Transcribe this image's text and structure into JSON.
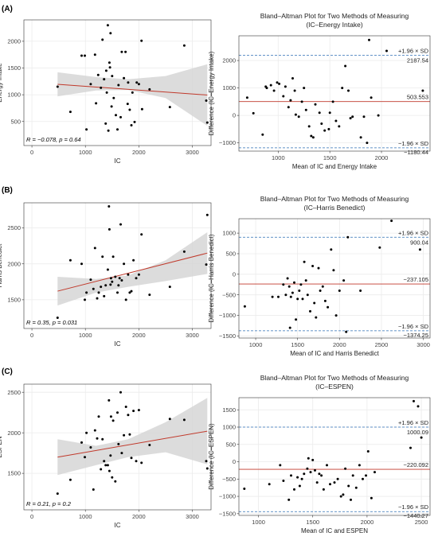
{
  "figure": {
    "colors": {
      "point": "#000000",
      "regression_line": "#c0392b",
      "confidence_band": "#d3d3d3",
      "mean_line": "#c0392b",
      "limit_line": "#2e6fb5",
      "grid": "#ebebeb",
      "panel_border": "#333333"
    }
  },
  "chart_data": [
    {
      "panel_label": "(A)",
      "type": "scatter",
      "title": "",
      "xlabel": "IC",
      "ylabel": "Energy Intake",
      "xlim": [
        -150,
        3350
      ],
      "ylim": [
        50,
        2400
      ],
      "xticks": [
        0,
        1000,
        2000,
        3000
      ],
      "yticks": [
        500,
        1000,
        1500,
        2000
      ],
      "grid": true,
      "points": [
        [
          480,
          1150
        ],
        [
          720,
          680
        ],
        [
          930,
          1730
        ],
        [
          990,
          1730
        ],
        [
          1020,
          350
        ],
        [
          1100,
          1200
        ],
        [
          1180,
          1750
        ],
        [
          1200,
          840
        ],
        [
          1240,
          1370
        ],
        [
          1290,
          1130
        ],
        [
          1320,
          2030
        ],
        [
          1350,
          1290
        ],
        [
          1380,
          460
        ],
        [
          1390,
          1450
        ],
        [
          1400,
          1040
        ],
        [
          1420,
          2300
        ],
        [
          1430,
          330
        ],
        [
          1450,
          1600
        ],
        [
          1460,
          1510
        ],
        [
          1470,
          2150
        ],
        [
          1490,
          780
        ],
        [
          1500,
          1350
        ],
        [
          1530,
          940
        ],
        [
          1570,
          620
        ],
        [
          1600,
          350
        ],
        [
          1620,
          1180
        ],
        [
          1660,
          580
        ],
        [
          1680,
          1800
        ],
        [
          1720,
          1310
        ],
        [
          1750,
          1800
        ],
        [
          1790,
          830
        ],
        [
          1800,
          1230
        ],
        [
          1830,
          720
        ],
        [
          1860,
          430
        ],
        [
          1880,
          1040
        ],
        [
          1920,
          490
        ],
        [
          1960,
          1230
        ],
        [
          2000,
          1200
        ],
        [
          2050,
          2010
        ],
        [
          2060,
          730
        ],
        [
          2200,
          1100
        ],
        [
          2580,
          770
        ],
        [
          2850,
          1920
        ],
        [
          3260,
          890
        ],
        [
          3280,
          480
        ]
      ],
      "regression": {
        "x": [
          480,
          3280
        ],
        "y": [
          1195,
          995
        ]
      },
      "band": {
        "x": [
          480,
          1200,
          1800,
          2500,
          3280
        ],
        "upper": [
          1420,
          1330,
          1290,
          1350,
          1570
        ],
        "lower": [
          970,
          1080,
          1090,
          940,
          420
        ]
      },
      "annotation": "R = −0.078, p = 0.64"
    },
    {
      "panel_label": "",
      "type": "scatter",
      "title": "Bland–Altman Plot for Two Methods of Measuring\n(IC–Energy Intake)",
      "xlabel": "Mean of IC and Energy Intake",
      "ylabel": "Difference (IC–Energy Intake)",
      "xlim": [
        620,
        2470
      ],
      "ylim": [
        -1300,
        2900
      ],
      "xticks": [
        1000,
        1500,
        2000
      ],
      "yticks": [
        -1000,
        0,
        1000,
        2000
      ],
      "grid": true,
      "points": [
        [
          700,
          650
        ],
        [
          760,
          80
        ],
        [
          850,
          -700
        ],
        [
          880,
          1050
        ],
        [
          890,
          1000
        ],
        [
          930,
          1100
        ],
        [
          960,
          900
        ],
        [
          990,
          1200
        ],
        [
          1010,
          1150
        ],
        [
          1050,
          700
        ],
        [
          1070,
          1050
        ],
        [
          1100,
          300
        ],
        [
          1120,
          550
        ],
        [
          1140,
          1350
        ],
        [
          1160,
          900
        ],
        [
          1170,
          30
        ],
        [
          1200,
          -50
        ],
        [
          1230,
          500
        ],
        [
          1250,
          1000
        ],
        [
          1270,
          200
        ],
        [
          1300,
          -400
        ],
        [
          1320,
          -750
        ],
        [
          1340,
          -800
        ],
        [
          1360,
          400
        ],
        [
          1400,
          100
        ],
        [
          1420,
          -300
        ],
        [
          1450,
          -550
        ],
        [
          1490,
          -500
        ],
        [
          1500,
          100
        ],
        [
          1530,
          500
        ],
        [
          1560,
          -200
        ],
        [
          1590,
          -400
        ],
        [
          1620,
          1000
        ],
        [
          1650,
          1800
        ],
        [
          1680,
          900
        ],
        [
          1700,
          -100
        ],
        [
          1720,
          -50
        ],
        [
          1800,
          -800
        ],
        [
          1830,
          -50
        ],
        [
          1860,
          -1000
        ],
        [
          1880,
          2750
        ],
        [
          1900,
          650
        ],
        [
          1970,
          0
        ],
        [
          2050,
          2350
        ],
        [
          2400,
          900
        ]
      ],
      "mean_line": {
        "value": 503.553,
        "label": "503.553"
      },
      "upper_loa": {
        "value": 2187.54,
        "label": "2187.54",
        "sd_label": "+1.96 × SD"
      },
      "lower_loa": {
        "value": -1180.44,
        "label": "−1180.44",
        "sd_label": "−1.96 × SD"
      }
    },
    {
      "panel_label": "(B)",
      "type": "scatter",
      "title": "",
      "xlabel": "IC",
      "ylabel": "Harris Benedict",
      "xlim": [
        -150,
        3350
      ],
      "ylim": [
        1100,
        2850
      ],
      "xticks": [
        0,
        1000,
        2000,
        3000
      ],
      "yticks": [
        1500,
        2000,
        2500
      ],
      "grid": true,
      "points": [
        [
          480,
          1250
        ],
        [
          720,
          2050
        ],
        [
          930,
          2000
        ],
        [
          990,
          1500
        ],
        [
          1020,
          1600
        ],
        [
          1100,
          1780
        ],
        [
          1150,
          1650
        ],
        [
          1180,
          2220
        ],
        [
          1220,
          1520
        ],
        [
          1250,
          1600
        ],
        [
          1290,
          1680
        ],
        [
          1320,
          2100
        ],
        [
          1350,
          1550
        ],
        [
          1380,
          1700
        ],
        [
          1420,
          1920
        ],
        [
          1440,
          2800
        ],
        [
          1450,
          2480
        ],
        [
          1470,
          1710
        ],
        [
          1480,
          1800
        ],
        [
          1500,
          1750
        ],
        [
          1520,
          2100
        ],
        [
          1560,
          1820
        ],
        [
          1600,
          1600
        ],
        [
          1620,
          1700
        ],
        [
          1640,
          1800
        ],
        [
          1660,
          2550
        ],
        [
          1680,
          1770
        ],
        [
          1720,
          2000
        ],
        [
          1760,
          1500
        ],
        [
          1800,
          1850
        ],
        [
          1830,
          1600
        ],
        [
          1860,
          1620
        ],
        [
          1900,
          2050
        ],
        [
          1950,
          1800
        ],
        [
          2000,
          1850
        ],
        [
          2050,
          2410
        ],
        [
          2200,
          1570
        ],
        [
          2580,
          1680
        ],
        [
          2850,
          2170
        ],
        [
          3260,
          1990
        ],
        [
          3280,
          2680
        ]
      ],
      "regression": {
        "x": [
          480,
          3280
        ],
        "y": [
          1620,
          2150
        ]
      },
      "band": {
        "x": [
          480,
          1200,
          1800,
          2500,
          3280
        ],
        "upper": [
          1820,
          1790,
          1840,
          2050,
          2440
        ],
        "lower": [
          1420,
          1600,
          1680,
          1760,
          1860
        ]
      },
      "annotation": "R = 0.35, p = 0.031"
    },
    {
      "panel_label": "",
      "type": "scatter",
      "title": "Bland–Altman Plot for Two Methods of Measuring\n(IC–Harris Benedict)",
      "xlabel": "Mean of IC and Harris Benedict",
      "ylabel": "Difference (IC–Harris Benedict)",
      "xlim": [
        800,
        3080
      ],
      "ylim": [
        -1550,
        1350
      ],
      "xticks": [
        1000,
        1500,
        2000,
        2500,
        3000
      ],
      "yticks": [
        -1500,
        -1000,
        -500,
        0,
        500,
        1000
      ],
      "grid": true,
      "points": [
        [
          870,
          -780
        ],
        [
          1200,
          -550
        ],
        [
          1270,
          -550
        ],
        [
          1330,
          -250
        ],
        [
          1360,
          -500
        ],
        [
          1380,
          -100
        ],
        [
          1400,
          -300
        ],
        [
          1410,
          -1300
        ],
        [
          1420,
          -550
        ],
        [
          1440,
          -450
        ],
        [
          1460,
          -200
        ],
        [
          1480,
          -1100
        ],
        [
          1500,
          -600
        ],
        [
          1520,
          -400
        ],
        [
          1540,
          -250
        ],
        [
          1560,
          -600
        ],
        [
          1580,
          300
        ],
        [
          1600,
          -150
        ],
        [
          1620,
          -500
        ],
        [
          1650,
          -900
        ],
        [
          1680,
          200
        ],
        [
          1700,
          -700
        ],
        [
          1720,
          -1050
        ],
        [
          1750,
          150
        ],
        [
          1770,
          -400
        ],
        [
          1800,
          -300
        ],
        [
          1830,
          -650
        ],
        [
          1860,
          -800
        ],
        [
          1900,
          600
        ],
        [
          1930,
          100
        ],
        [
          1960,
          -1000
        ],
        [
          2000,
          -400
        ],
        [
          2050,
          -150
        ],
        [
          2080,
          -1400
        ],
        [
          2100,
          900
        ],
        [
          2250,
          -400
        ],
        [
          2480,
          650
        ],
        [
          2620,
          1300
        ],
        [
          2960,
          600
        ]
      ],
      "mean_line": {
        "value": -237.105,
        "label": "−237.105"
      },
      "upper_loa": {
        "value": 900.04,
        "label": "900.04",
        "sd_label": "+1.96 × SD"
      },
      "lower_loa": {
        "value": -1374.25,
        "label": "−1374.25",
        "sd_label": "−1.96 × SD"
      }
    },
    {
      "panel_label": "(C)",
      "type": "scatter",
      "title": "",
      "xlabel": "IC",
      "ylabel": "ESPEN",
      "xlim": [
        -150,
        3350
      ],
      "ylim": [
        1050,
        2600
      ],
      "xticks": [
        0,
        1000,
        2000,
        3000
      ],
      "yticks": [
        1500,
        2000,
        2500
      ],
      "grid": true,
      "points": [
        [
          480,
          1250
        ],
        [
          720,
          1420
        ],
        [
          930,
          1880
        ],
        [
          990,
          1700
        ],
        [
          1020,
          2000
        ],
        [
          1100,
          1820
        ],
        [
          1150,
          1300
        ],
        [
          1180,
          2030
        ],
        [
          1220,
          1930
        ],
        [
          1250,
          2200
        ],
        [
          1290,
          1550
        ],
        [
          1320,
          1920
        ],
        [
          1350,
          1650
        ],
        [
          1380,
          1600
        ],
        [
          1420,
          1600
        ],
        [
          1440,
          2400
        ],
        [
          1450,
          1530
        ],
        [
          1470,
          1720
        ],
        [
          1480,
          2200
        ],
        [
          1500,
          1450
        ],
        [
          1520,
          2150
        ],
        [
          1560,
          1400
        ],
        [
          1600,
          2250
        ],
        [
          1620,
          1860
        ],
        [
          1660,
          2500
        ],
        [
          1680,
          1750
        ],
        [
          1720,
          1970
        ],
        [
          1760,
          2320
        ],
        [
          1800,
          2220
        ],
        [
          1830,
          1980
        ],
        [
          1860,
          1690
        ],
        [
          1900,
          2270
        ],
        [
          1950,
          1650
        ],
        [
          2000,
          2280
        ],
        [
          2050,
          1630
        ],
        [
          2200,
          1850
        ],
        [
          2580,
          2170
        ],
        [
          2850,
          2160
        ],
        [
          3260,
          1650
        ],
        [
          3280,
          1560
        ]
      ],
      "regression": {
        "x": [
          480,
          3280
        ],
        "y": [
          1700,
          2020
        ]
      },
      "band": {
        "x": [
          480,
          1200,
          1800,
          2500,
          3280
        ],
        "upper": [
          1920,
          1840,
          1920,
          2130,
          2430
        ],
        "lower": [
          1480,
          1600,
          1700,
          1760,
          1610
        ]
      },
      "annotation": "R = 0.21, p = 0.2"
    },
    {
      "panel_label": "",
      "type": "scatter",
      "title": "Bland–Altman Plot for Two Methods of Measuring\n(IC–ESPEN)",
      "xlabel": "Mean of IC and ESPEN",
      "ylabel": "Difference (IC–ESPEN)",
      "xlim": [
        820,
        2580
      ],
      "ylim": [
        -1550,
        1850
      ],
      "xticks": [
        1000,
        1500,
        2000,
        2500
      ],
      "yticks": [
        -1500,
        -1000,
        -500,
        0,
        500,
        1000,
        1500
      ],
      "grid": true,
      "points": [
        [
          870,
          -780
        ],
        [
          1100,
          -650
        ],
        [
          1200,
          -100
        ],
        [
          1230,
          -550
        ],
        [
          1280,
          -1100
        ],
        [
          1300,
          -400
        ],
        [
          1330,
          -800
        ],
        [
          1360,
          -450
        ],
        [
          1380,
          -700
        ],
        [
          1400,
          -500
        ],
        [
          1420,
          -350
        ],
        [
          1450,
          -200
        ],
        [
          1460,
          100
        ],
        [
          1480,
          -300
        ],
        [
          1500,
          50
        ],
        [
          1520,
          -250
        ],
        [
          1540,
          -600
        ],
        [
          1560,
          -350
        ],
        [
          1580,
          -400
        ],
        [
          1600,
          -800
        ],
        [
          1630,
          -100
        ],
        [
          1660,
          -650
        ],
        [
          1700,
          -600
        ],
        [
          1730,
          -500
        ],
        [
          1760,
          -1000
        ],
        [
          1780,
          -950
        ],
        [
          1800,
          -200
        ],
        [
          1830,
          -700
        ],
        [
          1850,
          -1100
        ],
        [
          1870,
          -400
        ],
        [
          1900,
          -750
        ],
        [
          1930,
          -100
        ],
        [
          1960,
          -500
        ],
        [
          1990,
          -400
        ],
        [
          2010,
          300
        ],
        [
          2040,
          -1050
        ],
        [
          2070,
          -300
        ],
        [
          2400,
          400
        ],
        [
          2430,
          1750
        ],
        [
          2470,
          1600
        ],
        [
          2500,
          700
        ]
      ],
      "mean_line": {
        "value": -220.092,
        "label": "−220.092"
      },
      "upper_loa": {
        "value": 1000.09,
        "label": "1000.09",
        "sd_label": "+1.96 × SD"
      },
      "lower_loa": {
        "value": -1440.27,
        "label": "−1440.27",
        "sd_label": "−1.96 × SD"
      }
    }
  ]
}
